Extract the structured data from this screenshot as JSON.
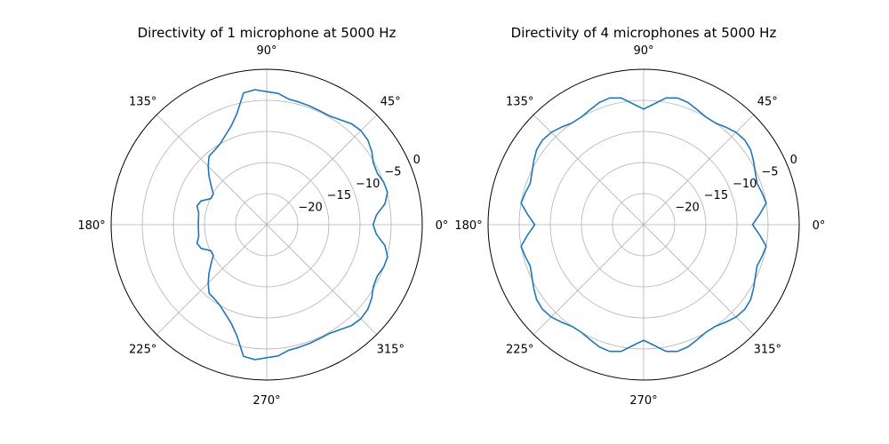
{
  "chart_data": [
    {
      "type": "line",
      "subtype": "polar",
      "title": "Directivity of 1 microphone at 5000 Hz",
      "theta_ticks": [
        "0°",
        "45°",
        "90°",
        "135°",
        "180°",
        "225°",
        "270°",
        "315°"
      ],
      "r_ticks": [
        "−20",
        "−15",
        "−10",
        "−5",
        "0"
      ],
      "r_tick_values": [
        -20,
        -15,
        -10,
        -5,
        0
      ],
      "rlim": [
        -25,
        0
      ],
      "grid": true,
      "series_color": "#1f77b4",
      "series": [
        {
          "theta_deg": [
            0,
            5,
            10,
            15,
            20,
            25,
            30,
            35,
            40,
            45,
            50,
            55,
            60,
            65,
            70,
            75,
            80,
            85,
            90,
            95,
            100,
            105,
            110,
            115,
            120,
            125,
            130,
            135,
            140,
            145,
            150,
            155,
            160,
            165,
            170,
            175,
            180,
            185,
            190,
            195,
            200,
            205,
            210,
            215,
            220,
            225,
            230,
            235,
            240,
            245,
            250,
            255,
            260,
            265,
            270,
            275,
            280,
            285,
            290,
            295,
            300,
            305,
            310,
            315,
            320,
            325,
            330,
            335,
            340,
            345,
            350,
            355
          ],
          "r": [
            -7.9,
            -7.3,
            -5.7,
            -4.9,
            -5.0,
            -5.4,
            -5.2,
            -4.4,
            -3.8,
            -3.6,
            -3.8,
            -4.4,
            -4.8,
            -4.8,
            -4.7,
            -4.6,
            -4.5,
            -3.8,
            -3.6,
            -3.2,
            -3.5,
            -6.5,
            -8.2,
            -9.2,
            -10.0,
            -10.4,
            -10.6,
            -11.7,
            -12.9,
            -14.1,
            -15.1,
            -15.1,
            -13.8,
            -13.4,
            -13.9,
            -14.0,
            -14.0,
            -14.0,
            -13.9,
            -13.4,
            -13.8,
            -15.1,
            -15.1,
            -14.1,
            -12.9,
            -11.7,
            -10.6,
            -10.4,
            -10.0,
            -9.2,
            -8.2,
            -6.5,
            -3.5,
            -3.2,
            -3.6,
            -3.8,
            -4.5,
            -4.6,
            -4.7,
            -4.8,
            -4.8,
            -4.4,
            -3.8,
            -3.6,
            -3.8,
            -4.4,
            -5.2,
            -5.4,
            -5.0,
            -4.9,
            -5.7,
            -7.3
          ]
        }
      ]
    },
    {
      "type": "line",
      "subtype": "polar",
      "title": "Directivity of 4 microphones at 5000 Hz",
      "theta_ticks": [
        "0°",
        "45°",
        "90°",
        "135°",
        "180°",
        "225°",
        "270°",
        "315°"
      ],
      "r_ticks": [
        "−20",
        "−15",
        "−10",
        "−5",
        "0"
      ],
      "r_tick_values": [
        -20,
        -15,
        -10,
        -5,
        0
      ],
      "rlim": [
        -25,
        0
      ],
      "grid": true,
      "series_color": "#1f77b4",
      "series": [
        {
          "theta_deg": [
            0,
            5,
            10,
            15,
            20,
            25,
            30,
            35,
            40,
            45,
            50,
            55,
            60,
            65,
            70,
            75,
            80,
            85,
            90,
            95,
            100,
            105,
            110,
            115,
            120,
            125,
            130,
            135,
            140,
            145,
            150,
            155,
            160,
            165,
            170,
            175,
            180,
            185,
            190,
            195,
            200,
            205,
            210,
            215,
            220,
            225,
            230,
            235,
            240,
            245,
            250,
            255,
            260,
            265,
            270,
            275,
            280,
            285,
            290,
            295,
            300,
            305,
            310,
            315,
            320,
            325,
            330,
            335,
            340,
            345,
            350,
            355
          ],
          "r": [
            -7.5,
            -6.3,
            -5.0,
            -5.3,
            -5.6,
            -5.2,
            -4.6,
            -4.0,
            -3.8,
            -4.0,
            -4.5,
            -5.0,
            -5.0,
            -4.6,
            -4.1,
            -3.9,
            -4.3,
            -5.5,
            -6.4,
            -5.5,
            -4.3,
            -3.9,
            -4.1,
            -4.6,
            -5.0,
            -5.0,
            -4.5,
            -4.0,
            -3.8,
            -4.0,
            -4.6,
            -5.2,
            -5.6,
            -5.3,
            -5.0,
            -6.3,
            -7.5,
            -6.3,
            -5.0,
            -5.3,
            -5.6,
            -5.2,
            -4.6,
            -4.0,
            -3.8,
            -4.0,
            -4.5,
            -5.0,
            -5.0,
            -4.6,
            -4.1,
            -3.9,
            -4.3,
            -5.5,
            -6.4,
            -5.5,
            -4.3,
            -3.9,
            -4.1,
            -4.6,
            -5.0,
            -5.0,
            -4.5,
            -4.0,
            -3.8,
            -4.0,
            -4.6,
            -5.2,
            -5.6,
            -5.3,
            -5.0,
            -6.3
          ]
        }
      ]
    }
  ]
}
